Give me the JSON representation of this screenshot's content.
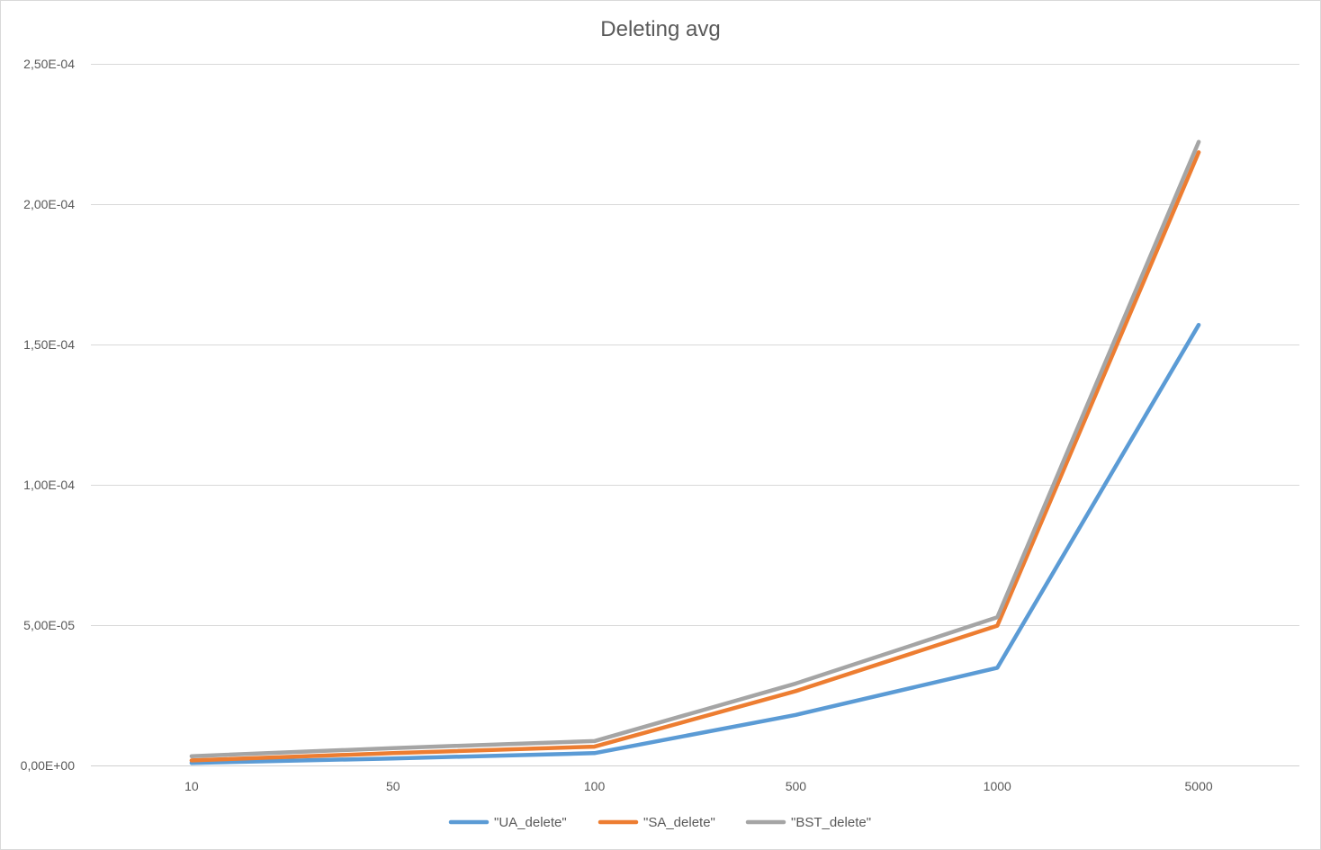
{
  "chart_data": {
    "type": "line",
    "title": "Deleting avg",
    "xlabel": "",
    "ylabel": "",
    "categories": [
      "10",
      "50",
      "100",
      "500",
      "1000",
      "5000"
    ],
    "ylim": [
      0,
      0.00025
    ],
    "y_ticks": [
      0,
      5e-05,
      0.0001,
      0.00015,
      0.0002,
      0.00025
    ],
    "y_tick_labels": [
      "0,00E+00",
      "5,00E-05",
      "1,00E-04",
      "1,50E-04",
      "2,00E-04",
      "2,50E-04"
    ],
    "grid": true,
    "legend_position": "bottom",
    "series": [
      {
        "name": "\"UA_delete\"",
        "color": "#5b9bd5",
        "values": [
          9e-07,
          2.5e-06,
          4.4e-06,
          1.8e-05,
          3.48e-05,
          0.000157
        ]
      },
      {
        "name": "\"SA_delete\"",
        "color": "#ed7d31",
        "values": [
          1.8e-06,
          4.4e-06,
          6.7e-06,
          2.65e-05,
          4.98e-05,
          0.0002185
        ]
      },
      {
        "name": "\"BST_delete\"",
        "color": "#a5a5a5",
        "values": [
          3.3e-06,
          6.2e-06,
          8.7e-06,
          2.92e-05,
          5.28e-05,
          0.0002222
        ]
      }
    ]
  }
}
